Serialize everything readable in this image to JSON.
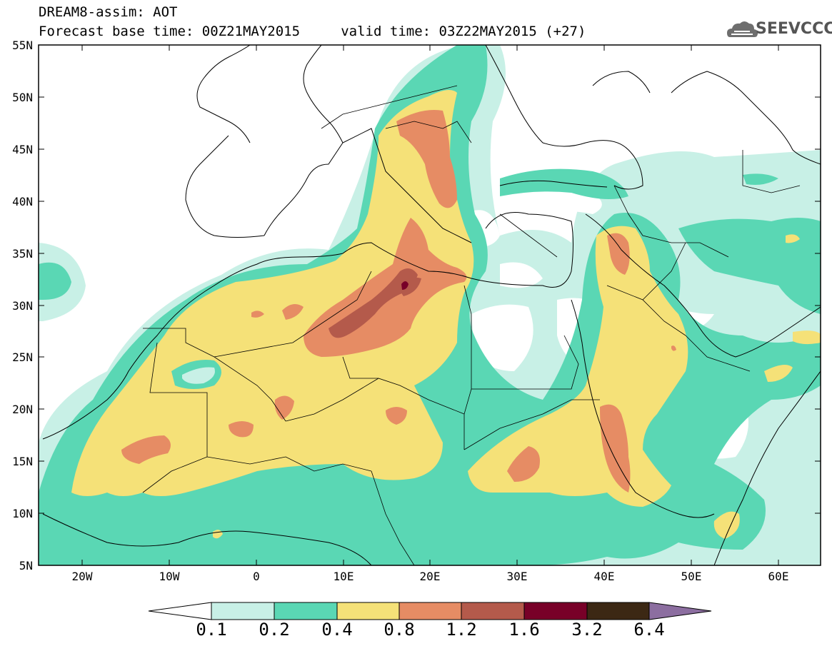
{
  "header": {
    "line1": "DREAM8-assim: AOT",
    "line2": "Forecast base time: 00Z21MAY2015     valid time: 03Z22MAY2015 (+27)"
  },
  "logo": {
    "text": "SEEVCCC",
    "icon": "cloud-icon"
  },
  "axes": {
    "lat_labels": [
      "55N",
      "50N",
      "45N",
      "40N",
      "35N",
      "30N",
      "25N",
      "20N",
      "15N",
      "10N",
      "5N"
    ],
    "lon_labels": [
      "20W",
      "10W",
      "0",
      "10E",
      "20E",
      "30E",
      "40E",
      "50E",
      "60E"
    ]
  },
  "colorbar": {
    "labels": [
      "0.1",
      "0.2",
      "0.4",
      "0.8",
      "1.2",
      "1.6",
      "3.2",
      "6.4"
    ],
    "colors": [
      "#ffffff",
      "#c8f0e6",
      "#5ad7b4",
      "#f5e178",
      "#e68c64",
      "#b45a4b",
      "#780028",
      "#3c2814",
      "#8c6ea0"
    ]
  }
}
